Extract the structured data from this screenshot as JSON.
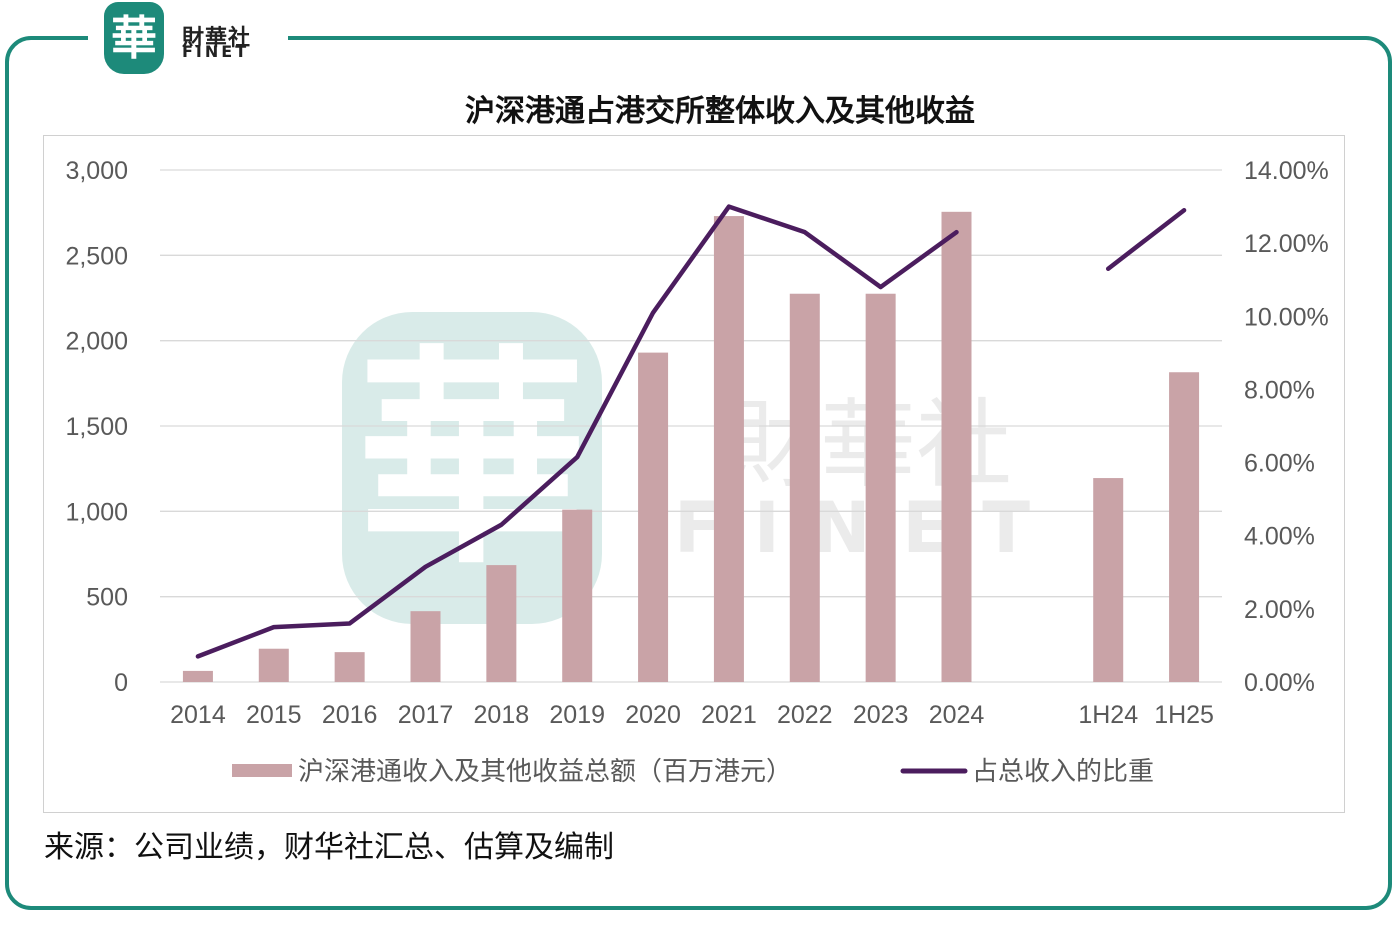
{
  "logo": {
    "mark": "華",
    "name_cn": "財華社",
    "name_en": "FINET"
  },
  "title": "沪深港通占港交所整体收入及其他收益",
  "source": "来源：公司业绩，财华社汇总、估算及编制",
  "watermark": {
    "mark": "華",
    "cn": "財華社",
    "en": "FINET"
  },
  "colors": {
    "frame": "#1d8a7a",
    "bar": "#c9a3a7",
    "line": "#4b1d5e",
    "grid": "#d9d9d9",
    "axis_text": "#595959"
  },
  "chart_data": {
    "type": "bar",
    "categories": [
      "2014",
      "2015",
      "2016",
      "2017",
      "2018",
      "2019",
      "2020",
      "2021",
      "2022",
      "2023",
      "2024",
      "",
      "1H24",
      "1H25"
    ],
    "series": [
      {
        "name": "沪深港通收入及其他收益总额（百万港元）",
        "type": "bar",
        "axis": "left",
        "values": [
          65,
          195,
          175,
          415,
          685,
          1010,
          1930,
          2730,
          2275,
          2275,
          2755,
          null,
          1195,
          1815
        ]
      },
      {
        "name": "占总收入的比重",
        "type": "line",
        "axis": "right",
        "values": [
          0.7,
          1.5,
          1.6,
          3.15,
          4.3,
          6.15,
          10.1,
          13.0,
          12.3,
          10.8,
          12.3,
          null,
          11.3,
          12.9
        ]
      }
    ],
    "y_left": {
      "range": [
        0,
        3000
      ],
      "ticks": [
        0,
        500,
        1000,
        1500,
        2000,
        2500,
        3000
      ],
      "tick_labels": [
        "0",
        "500",
        "1,000",
        "1,500",
        "2,000",
        "2,500",
        "3,000"
      ]
    },
    "y_right": {
      "range": [
        0,
        14
      ],
      "ticks": [
        0,
        2,
        4,
        6,
        8,
        10,
        12,
        14
      ],
      "tick_labels": [
        "0.00%",
        "2.00%",
        "4.00%",
        "6.00%",
        "8.00%",
        "10.00%",
        "12.00%",
        "14.00%"
      ]
    },
    "grid": true,
    "legend_position": "bottom"
  }
}
